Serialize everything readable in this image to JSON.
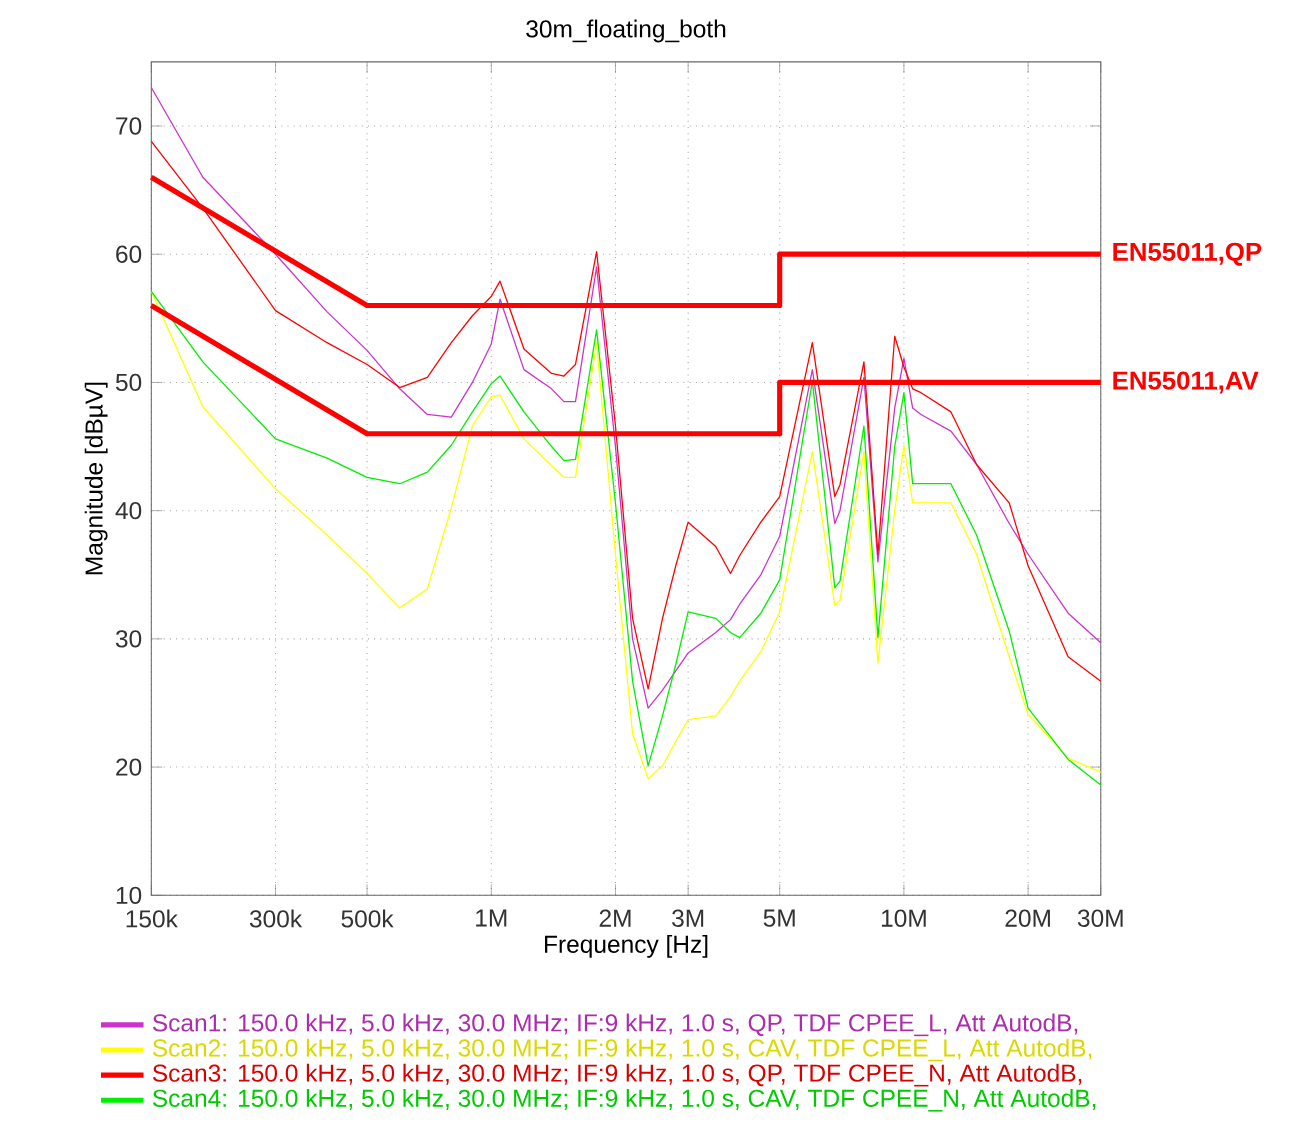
{
  "chart_data": {
    "type": "line",
    "title": "30m_floating_both",
    "xlabel": "Frequency [Hz]",
    "ylabel": "Magnitude [dBµV]",
    "log": "x",
    "grid": true,
    "legend": "bottom",
    "xlim": [
      150000,
      30000000
    ],
    "ylim": [
      10,
      75
    ],
    "xticks": [
      {
        "value": 150000,
        "label": "150k"
      },
      {
        "value": 300000,
        "label": "300k"
      },
      {
        "value": 500000,
        "label": "500k"
      },
      {
        "value": 1000000,
        "label": "1M"
      },
      {
        "value": 2000000,
        "label": "2M"
      },
      {
        "value": 3000000,
        "label": "3M"
      },
      {
        "value": 5000000,
        "label": "5M"
      },
      {
        "value": 10000000,
        "label": "10M"
      },
      {
        "value": 20000000,
        "label": "20M"
      },
      {
        "value": 30000000,
        "label": "30M"
      }
    ],
    "yticks": [
      10,
      20,
      30,
      40,
      50,
      60,
      70
    ],
    "x": [
      150000,
      200000,
      300000,
      400000,
      500000,
      600000,
      700000,
      800000,
      900000,
      1000000,
      1050000,
      1200000,
      1400000,
      1500000,
      1600000,
      1800000,
      2000000,
      2200000,
      2400000,
      2600000,
      2800000,
      3000000,
      3500000,
      3800000,
      4000000,
      4500000,
      5000000,
      6000000,
      6800000,
      7000000,
      8000000,
      8650000,
      9500000,
      10000000,
      10500000,
      11000000,
      13000000,
      15000000,
      18000000,
      20000000,
      25000000,
      30000000
    ],
    "series": [
      {
        "name": "Scan1: 150.0 kHz, 5.0 kHz, 30.0 MHz; IF:9 kHz, 1.0 s, QP, TDF CPEE_L, Att AutodB,",
        "color": "#cc33cc",
        "values": [
          73,
          66,
          60,
          55.5,
          52.5,
          49.5,
          47.5,
          47.3,
          50,
          53,
          56.5,
          51,
          49.5,
          48.5,
          48.5,
          59,
          45,
          30,
          24.6,
          26,
          27.5,
          28.9,
          30.5,
          31.5,
          32.7,
          35,
          38,
          51,
          39,
          40,
          50.4,
          36,
          48,
          51.9,
          48,
          47.5,
          46.2,
          43.6,
          39,
          36.6,
          32,
          29.7
        ]
      },
      {
        "name": "Scan2: 150.0 kHz, 5.0 kHz, 30.0 MHz; IF:9 kHz, 1.0 s, CAV, TDF CPEE_L, Att AutodB,",
        "color": "#ffff00",
        "values": [
          57.1,
          48.1,
          41.7,
          38.1,
          35.1,
          32.4,
          33.9,
          40.2,
          46.6,
          48.9,
          49,
          45.6,
          43.5,
          42.6,
          42.6,
          53.1,
          36.6,
          22.6,
          19.1,
          20.1,
          22,
          23.7,
          24,
          25.5,
          26.7,
          29,
          32.1,
          44.6,
          32.6,
          33,
          44.6,
          28.1,
          40,
          45.1,
          40.6,
          40.6,
          40.6,
          36.6,
          28.6,
          24.1,
          20.7,
          19.6
        ]
      },
      {
        "name": "Scan3: 150.0 kHz, 5.0 kHz, 30.0 MHz; IF:9 kHz, 1.0 s, QP, TDF CPEE_N, Att AutodB,",
        "color": "#ff0000",
        "values": [
          68.8,
          63.6,
          55.6,
          53.1,
          51.4,
          49.6,
          50.4,
          53.1,
          55.2,
          56.7,
          57.9,
          52.6,
          50.7,
          50.5,
          51.4,
          60.2,
          46.6,
          31.6,
          26.1,
          31.6,
          35.7,
          39.1,
          37.2,
          35.1,
          36.5,
          39.1,
          41.1,
          53.1,
          41.1,
          42,
          51.6,
          36.6,
          53.6,
          51.2,
          49.5,
          49.2,
          47.7,
          43.6,
          40.6,
          35.7,
          28.6,
          26.7
        ]
      },
      {
        "name": "Scan4: 150.0 kHz, 5.0 kHz, 30.0 MHz; IF:9 kHz, 1.0 s, CAV, TDF CPEE_N, Att AutodB,",
        "color": "#00ee00",
        "values": [
          57.1,
          51.6,
          45.6,
          44.1,
          42.6,
          42.1,
          43,
          45.1,
          47.7,
          49.9,
          50.5,
          47.7,
          45,
          43.9,
          44,
          54.1,
          40.6,
          26.7,
          20.1,
          24,
          28,
          32.1,
          31.6,
          30.5,
          30.1,
          32,
          34.6,
          50.1,
          34,
          34.5,
          46.6,
          30.1,
          45,
          49.2,
          42.1,
          42.1,
          42.1,
          38.1,
          30.6,
          24.6,
          20.6,
          18.6
        ]
      },
      {
        "name": "EN55011,QP",
        "color": "#ff0000",
        "x": [
          150000,
          500000,
          5000000,
          5000000,
          30000000
        ],
        "values": [
          66,
          56,
          56,
          60,
          60
        ]
      },
      {
        "name": "EN55011,AV",
        "color": "#ff0000",
        "x": [
          150000,
          500000,
          5000000,
          5000000,
          30000000
        ],
        "values": [
          56,
          46,
          46,
          50,
          50
        ]
      }
    ]
  }
}
